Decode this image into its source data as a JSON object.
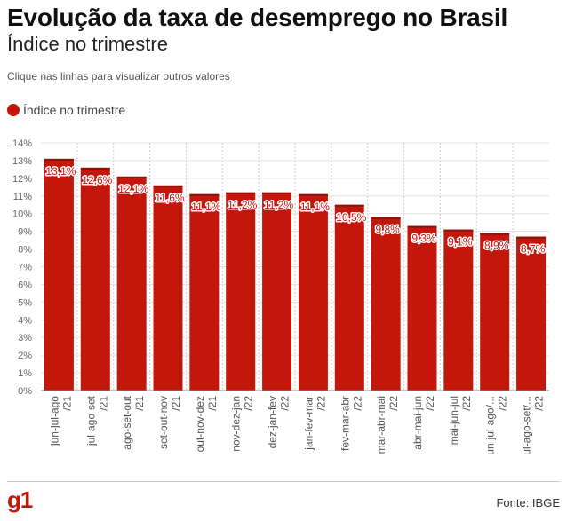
{
  "header": {
    "title": "Evolução da taxa de desemprego no Brasil",
    "subtitle": "Índice no trimestre",
    "hint": "Clique nas linhas para visualizar outros valores"
  },
  "legend": {
    "label": "Índice no trimestre",
    "color": "#c4170c"
  },
  "footer": {
    "logo": "g1",
    "source": "Fonte: IBGE"
  },
  "chart_data": {
    "type": "bar",
    "categories": [
      [
        "jun-jul-ago",
        "/21"
      ],
      [
        "jul-ago-set",
        "/21"
      ],
      [
        "ago-set-out",
        "/21"
      ],
      [
        "set-out-nov",
        "/21"
      ],
      [
        "out-nov-dez",
        "/21"
      ],
      [
        "nov-dez-jan",
        "/22"
      ],
      [
        "dez-jan-fev",
        "/22"
      ],
      [
        "jan-fev-mar",
        "/22"
      ],
      [
        "fev-mar-abr",
        "/22"
      ],
      [
        "mar-abr-mai",
        "/22"
      ],
      [
        "abr-mai-jun",
        "/22"
      ],
      [
        "mai-jun-jul",
        "/22"
      ],
      [
        "un-jul-ago/...",
        "/22"
      ],
      [
        "ul-ago-set/...",
        "/22"
      ]
    ],
    "series": [
      {
        "name": "Índice no trimestre",
        "values": [
          13.1,
          12.6,
          12.1,
          11.6,
          11.1,
          11.2,
          11.2,
          11.1,
          10.5,
          9.8,
          9.3,
          9.1,
          8.9,
          8.7
        ],
        "labels": [
          "13,1%",
          "12,6%",
          "12,1%",
          "11,6%",
          "11,1%",
          "11,2%",
          "11,2%",
          "11,1%",
          "10,5%",
          "9,8%",
          "9,3%",
          "9,1%",
          "8,9%",
          "8,7%"
        ]
      }
    ],
    "ylim": [
      0,
      14
    ],
    "yticks": [
      "0%",
      "1%",
      "2%",
      "3%",
      "4%",
      "5%",
      "6%",
      "7%",
      "8%",
      "9%",
      "10%",
      "11%",
      "12%",
      "13%",
      "14%"
    ],
    "grid": true,
    "legend_position": "top-left",
    "bar_color": "#c4170c"
  }
}
